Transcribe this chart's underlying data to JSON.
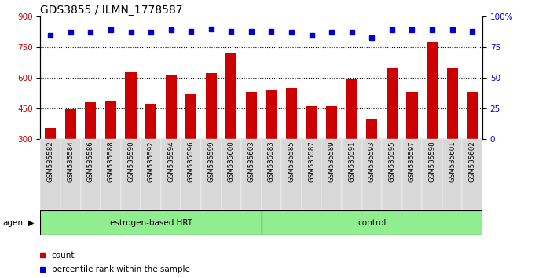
{
  "title": "GDS3855 / ILMN_1778587",
  "samples": [
    "GSM535582",
    "GSM535584",
    "GSM535586",
    "GSM535588",
    "GSM535590",
    "GSM535592",
    "GSM535594",
    "GSM535596",
    "GSM535599",
    "GSM535600",
    "GSM535603",
    "GSM535583",
    "GSM535585",
    "GSM535587",
    "GSM535589",
    "GSM535591",
    "GSM535593",
    "GSM535595",
    "GSM535597",
    "GSM535598",
    "GSM535601",
    "GSM535602"
  ],
  "bar_values": [
    355,
    447,
    480,
    490,
    628,
    473,
    615,
    520,
    623,
    718,
    530,
    540,
    550,
    460,
    460,
    598,
    400,
    645,
    530,
    775,
    645,
    530
  ],
  "percentile_values": [
    85,
    87,
    87,
    89,
    87,
    87,
    89,
    88,
    90,
    88,
    88,
    88,
    87,
    85,
    87,
    87,
    83,
    89,
    89,
    89,
    89,
    88
  ],
  "bar_color": "#cc0000",
  "dot_color": "#0000cc",
  "group1_label": "estrogen-based HRT",
  "group1_count": 11,
  "group2_label": "control",
  "group2_count": 11,
  "agent_label": "agent",
  "ylim_left": [
    300,
    900
  ],
  "ylim_right": [
    0,
    100
  ],
  "yticks_left": [
    300,
    450,
    600,
    750,
    900
  ],
  "yticks_right": [
    0,
    25,
    50,
    75,
    100
  ],
  "ytick_labels_right": [
    "0",
    "25",
    "50",
    "75",
    "100%"
  ],
  "grid_values": [
    450,
    600,
    750
  ],
  "legend_count_label": "count",
  "legend_percentile_label": "percentile rank within the sample",
  "group_bg_color": "#90ee90",
  "xticklabel_bg_color": "#d8d8d8",
  "title_fontsize": 10,
  "tick_fontsize": 7.5,
  "bar_width": 0.55
}
